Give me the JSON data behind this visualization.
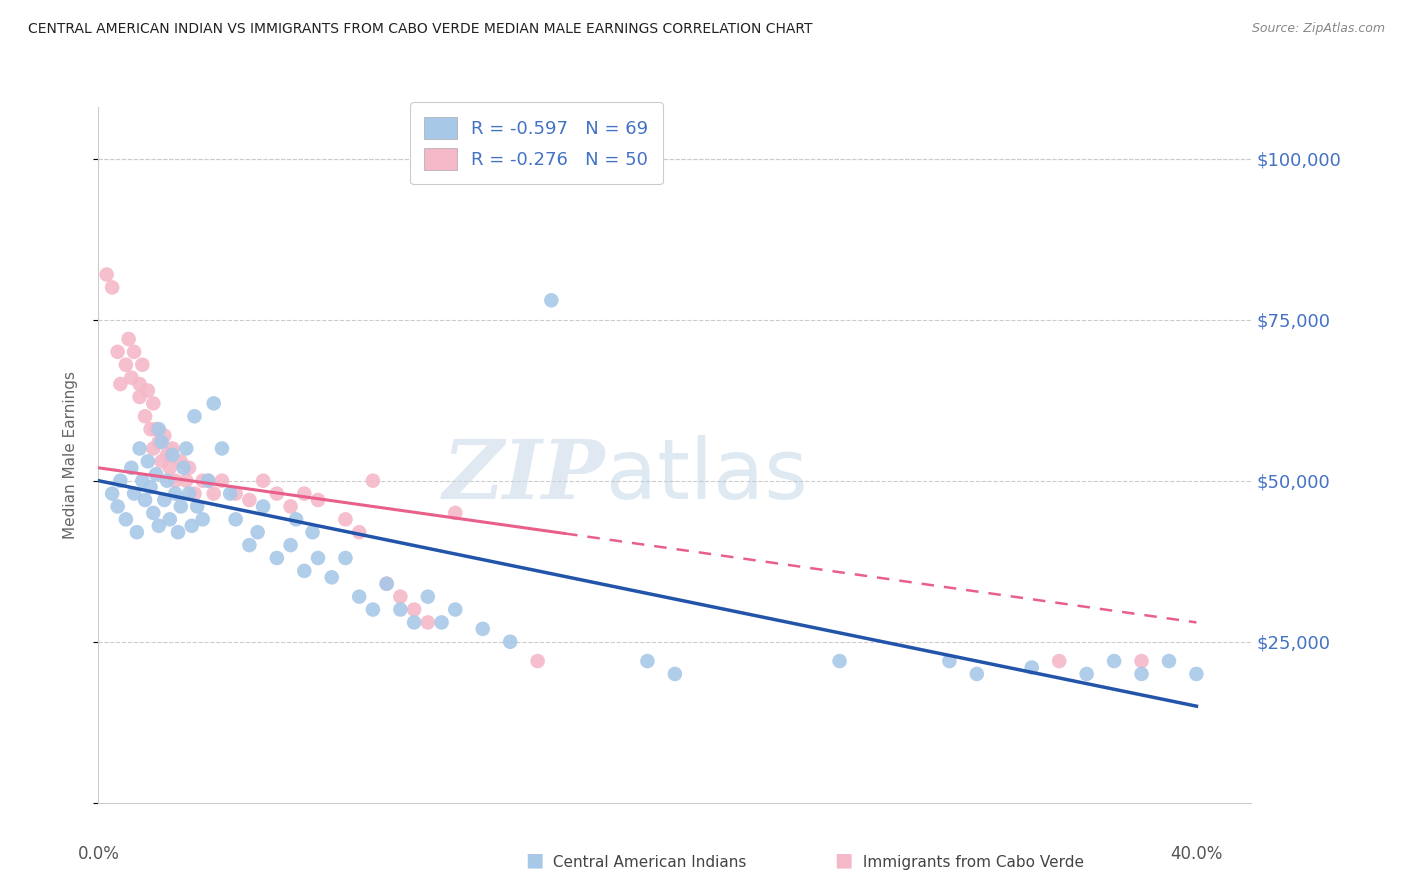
{
  "title": "CENTRAL AMERICAN INDIAN VS IMMIGRANTS FROM CABO VERDE MEDIAN MALE EARNINGS CORRELATION CHART",
  "source": "Source: ZipAtlas.com",
  "ylabel": "Median Male Earnings",
  "yticks": [
    0,
    25000,
    50000,
    75000,
    100000
  ],
  "ytick_labels": [
    "",
    "$25,000",
    "$50,000",
    "$75,000",
    "$100,000"
  ],
  "xlim": [
    0.0,
    0.42
  ],
  "ylim": [
    0,
    108000
  ],
  "legend_blue_r": "R = -0.597",
  "legend_blue_n": "N = 69",
  "legend_pink_r": "R = -0.276",
  "legend_pink_n": "N = 50",
  "watermark_zip": "ZIP",
  "watermark_atlas": "atlas",
  "blue_color": "#a8c8e8",
  "pink_color": "#f4b8c8",
  "blue_line_color": "#2255aa",
  "pink_line_color": "#e8608a",
  "right_label_color": "#4472c4",
  "blue_scatter_x": [
    0.005,
    0.007,
    0.008,
    0.01,
    0.012,
    0.013,
    0.014,
    0.015,
    0.016,
    0.017,
    0.018,
    0.019,
    0.02,
    0.021,
    0.022,
    0.022,
    0.023,
    0.024,
    0.025,
    0.026,
    0.027,
    0.028,
    0.029,
    0.03,
    0.031,
    0.032,
    0.033,
    0.034,
    0.035,
    0.036,
    0.038,
    0.04,
    0.042,
    0.045,
    0.048,
    0.05,
    0.055,
    0.058,
    0.06,
    0.065,
    0.07,
    0.072,
    0.075,
    0.078,
    0.08,
    0.085,
    0.09,
    0.095,
    0.1,
    0.105,
    0.11,
    0.115,
    0.12,
    0.125,
    0.13,
    0.14,
    0.15,
    0.165,
    0.2,
    0.21,
    0.27,
    0.31,
    0.32,
    0.34,
    0.36,
    0.37,
    0.38,
    0.39,
    0.4
  ],
  "blue_scatter_y": [
    48000,
    46000,
    50000,
    44000,
    52000,
    48000,
    42000,
    55000,
    50000,
    47000,
    53000,
    49000,
    45000,
    51000,
    58000,
    43000,
    56000,
    47000,
    50000,
    44000,
    54000,
    48000,
    42000,
    46000,
    52000,
    55000,
    48000,
    43000,
    60000,
    46000,
    44000,
    50000,
    62000,
    55000,
    48000,
    44000,
    40000,
    42000,
    46000,
    38000,
    40000,
    44000,
    36000,
    42000,
    38000,
    35000,
    38000,
    32000,
    30000,
    34000,
    30000,
    28000,
    32000,
    28000,
    30000,
    27000,
    25000,
    78000,
    22000,
    20000,
    22000,
    22000,
    20000,
    21000,
    20000,
    22000,
    20000,
    22000,
    20000
  ],
  "pink_scatter_x": [
    0.003,
    0.005,
    0.007,
    0.008,
    0.01,
    0.011,
    0.012,
    0.013,
    0.015,
    0.015,
    0.016,
    0.017,
    0.018,
    0.019,
    0.02,
    0.02,
    0.021,
    0.022,
    0.023,
    0.024,
    0.025,
    0.026,
    0.027,
    0.028,
    0.03,
    0.032,
    0.033,
    0.035,
    0.038,
    0.04,
    0.042,
    0.045,
    0.05,
    0.055,
    0.06,
    0.065,
    0.07,
    0.075,
    0.08,
    0.09,
    0.095,
    0.1,
    0.105,
    0.11,
    0.115,
    0.12,
    0.13,
    0.16,
    0.35,
    0.38
  ],
  "pink_scatter_y": [
    82000,
    80000,
    70000,
    65000,
    68000,
    72000,
    66000,
    70000,
    65000,
    63000,
    68000,
    60000,
    64000,
    58000,
    62000,
    55000,
    58000,
    56000,
    53000,
    57000,
    54000,
    52000,
    55000,
    50000,
    53000,
    50000,
    52000,
    48000,
    50000,
    50000,
    48000,
    50000,
    48000,
    47000,
    50000,
    48000,
    46000,
    48000,
    47000,
    44000,
    42000,
    50000,
    34000,
    32000,
    30000,
    28000,
    45000,
    22000,
    22000,
    22000
  ]
}
